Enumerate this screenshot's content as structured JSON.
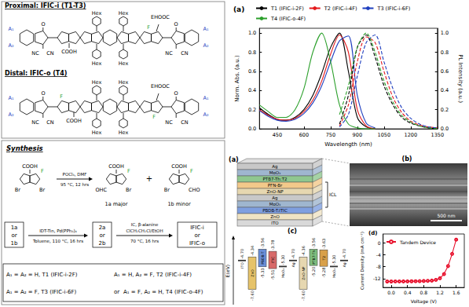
{
  "structures": [
    {
      "title": "Proximal: IFIC-i (T1-T3)",
      "labels": [
        "A₁",
        "A₂",
        "O",
        "NC",
        "CN",
        "COOH",
        "Hex",
        "Hex",
        "Hex",
        "Hex",
        "F",
        "EHOOC",
        "O",
        "NC",
        "CN",
        "A₁",
        "A₂"
      ]
    },
    {
      "title": "Distal: IFIC-o (T4)",
      "labels": [
        "A₁",
        "A₂",
        "O",
        "NC",
        "CN",
        "F",
        "COOH",
        "Hex",
        "Hex",
        "Hex",
        "Hex",
        "F",
        "EHOOC",
        "O",
        "NC",
        "CN",
        "A₁",
        "A₂"
      ]
    }
  ],
  "synthesis": {
    "title": "Synthesis",
    "compounds": [
      {
        "labels": [
          "COOH",
          "F",
          "Br",
          "Br"
        ]
      },
      {
        "labels": [
          "COOH",
          "F",
          "OHC",
          "Br"
        ],
        "name": "1a major"
      },
      {
        "labels": [
          "COOH",
          "F",
          "Br",
          "CHO"
        ],
        "name": "1b minor"
      }
    ],
    "plus": "+",
    "arrow1": {
      "above": [
        "POCl₃, DMF"
      ],
      "below": [
        "95 °C, 12 hrs"
      ]
    },
    "start2": [
      "1a",
      "or",
      "1b"
    ],
    "arrow2": {
      "above": [
        "IDT-Tin, Pd(PPh₃)₄"
      ],
      "below": [
        "Toluene, 110 °C, 16 hrs"
      ]
    },
    "intermediate": [
      "2a",
      "or",
      "2b"
    ],
    "arrow3": {
      "above": [
        "IC, β-alanine",
        "ClCH₂CH₂Cl/EtOH"
      ],
      "below": [
        "70 °C, 16 hrs"
      ]
    },
    "products": [
      "IFIC-i",
      "or",
      "IFIC-o"
    ],
    "key": [
      "A₁ = A₂ = H, T1 (IFIC-i-2F)",
      "A₁ = H, A₂ = F, T2 (IFIC-i-4F)",
      "A₁ = A₂ = F, T3 (IFIC-i-6F)",
      "or",
      "A₁ = F, A₂ = H, T4 (IFIC-o-4F)"
    ]
  },
  "device": {
    "label": "(a)",
    "layers": [
      "Ag",
      "MoO₃",
      "PTB7-Th:T2",
      "PFN-Br",
      "ZnO-NP",
      "Ag",
      "MoO₃",
      "PBDB-T:ITIC",
      "ZnO",
      "ITO"
    ],
    "icl": "ICL"
  },
  "sem": {
    "label": "(b)",
    "scale_bar": "500 nm"
  },
  "energy_levels": {
    "label": "(c)",
    "axis_title": "E(eV)",
    "ylim": [
      -9.2,
      -2.2
    ],
    "items": [
      {
        "name": "ITO",
        "levels": [
          {
            "value": -4.7,
            "label": "-4.70"
          }
        ]
      },
      {
        "name": "ZnO",
        "levels": [
          {
            "value": -4.34,
            "label": "-4.34"
          },
          {
            "value": -7.6,
            "label": "-7.60"
          }
        ]
      },
      {
        "name": "PBDB-T",
        "levels": [
          {
            "value": -3.56,
            "label": "-3.56"
          },
          {
            "value": -5.33,
            "label": "-5.33"
          }
        ]
      },
      {
        "name": "ITIC",
        "levels": [
          {
            "value": -3.78,
            "label": "-3.78"
          },
          {
            "value": -5.51,
            "label": "-5.51"
          }
        ]
      },
      {
        "name": "MoO₃",
        "levels": [
          {
            "value": -5.3,
            "label": "-5.30"
          }
        ]
      },
      {
        "name": "Ag",
        "levels": [
          {
            "value": -4.7,
            "label": "-4.70"
          }
        ]
      },
      {
        "name": "ZnO-NP",
        "levels": [
          {
            "value": -4.36,
            "label": "-4.36"
          },
          {
            "value": -7.6,
            "label": "-7.60"
          }
        ]
      },
      {
        "name": "PTB7-Th",
        "levels": [
          {
            "value": -3.56,
            "label": "-3.56"
          },
          {
            "value": -5.2,
            "label": "-5.20"
          }
        ]
      },
      {
        "name": "T2",
        "levels": [
          {
            "value": -3.63,
            "label": "-3.63"
          },
          {
            "value": -5.28,
            "label": "-5.28"
          }
        ]
      },
      {
        "name": "MoO₃",
        "levels": [
          {
            "value": -5.3,
            "label": "-5.30"
          }
        ]
      },
      {
        "name": "Ag",
        "levels": [
          {
            "value": -4.7,
            "label": "-4.70"
          }
        ]
      }
    ]
  },
  "chart_data": [
    {
      "type": "line",
      "title": "(a)",
      "xlabel": "Wavelength (nm)",
      "ylabel": "Norm. Abs. (a.u.)",
      "y2label": "PL Intensity (a.u.)",
      "x": [
        350,
        400,
        450,
        500,
        550,
        600,
        650,
        700,
        750,
        800,
        850,
        900,
        950,
        1000,
        1050,
        1100,
        1150,
        1200,
        1250,
        1300,
        1350
      ],
      "xlim": [
        350,
        1350
      ],
      "xticks": [
        450,
        600,
        750,
        900,
        1050,
        1200,
        1350
      ],
      "ylim": [
        0,
        1.05
      ],
      "yticks": [
        {
          "value": 0,
          "label": "0.0"
        },
        0.2,
        0.4,
        0.6,
        0.8,
        {
          "value": 1,
          "label": "1.0"
        }
      ],
      "y2lim": [
        0,
        1.05
      ],
      "y2ticks": [
        {
          "value": 0,
          "label": "0.0"
        },
        0.2,
        0.4,
        0.6,
        0.8,
        {
          "value": 1,
          "label": "1.0"
        }
      ],
      "grid": false,
      "legend": "top",
      "series": [
        {
          "name": "T1 (IFIC-i-2F)",
          "color": "#000000",
          "line_style": "solid",
          "values": [
            0.22,
            0.15,
            0.1,
            0.09,
            0.12,
            0.2,
            0.35,
            0.58,
            0.85,
            1.0,
            0.6,
            0.12,
            0.02,
            0.0,
            null,
            null,
            null,
            null,
            null,
            null,
            null
          ]
        },
        {
          "name": "T2 (IFIC-i-4F)",
          "color": "#e41a1c",
          "line_style": "solid",
          "values": [
            0.2,
            0.14,
            0.1,
            0.09,
            0.11,
            0.18,
            0.3,
            0.5,
            0.78,
            0.98,
            0.8,
            0.2,
            0.03,
            0.0,
            null,
            null,
            null,
            null,
            null,
            null,
            null
          ]
        },
        {
          "name": "T3 (IFIC-i-6F)",
          "color": "#1f3fbf",
          "line_style": "solid",
          "values": [
            0.19,
            0.13,
            0.09,
            0.08,
            0.1,
            0.16,
            0.27,
            0.45,
            0.7,
            0.92,
            0.97,
            0.35,
            0.06,
            0.01,
            null,
            null,
            null,
            null,
            null,
            null,
            null
          ]
        },
        {
          "name": "T4 (IFIC-o-4F)",
          "color": "#2ca02c",
          "line_style": "solid",
          "values": [
            0.25,
            0.18,
            0.12,
            0.12,
            0.2,
            0.42,
            0.8,
            1.0,
            0.7,
            0.25,
            0.05,
            0.01,
            0.0,
            0.0,
            null,
            null,
            null,
            null,
            null,
            null,
            null
          ]
        },
        {
          "name": "T1 (IFIC-i-2F)",
          "color": "#000000",
          "line_style": "dashed",
          "axis": "y2",
          "values": [
            null,
            null,
            null,
            null,
            null,
            null,
            null,
            null,
            null,
            0.05,
            0.35,
            0.85,
            0.98,
            0.75,
            0.45,
            0.25,
            0.12,
            0.06,
            0.03,
            0.01,
            0.0
          ]
        },
        {
          "name": "T2 (IFIC-i-4F)",
          "color": "#e41a1c",
          "line_style": "dashed",
          "axis": "y2",
          "values": [
            null,
            null,
            null,
            null,
            null,
            null,
            null,
            null,
            null,
            0.03,
            0.25,
            0.7,
            0.96,
            0.9,
            0.6,
            0.33,
            0.17,
            0.08,
            0.04,
            0.02,
            0.01
          ]
        },
        {
          "name": "T3 (IFIC-i-6F)",
          "color": "#1f3fbf",
          "line_style": "dashed",
          "axis": "y2",
          "values": [
            null,
            null,
            null,
            null,
            null,
            null,
            null,
            null,
            null,
            0.02,
            0.15,
            0.55,
            0.9,
            0.98,
            0.7,
            0.42,
            0.22,
            0.11,
            0.05,
            0.02,
            0.01
          ]
        },
        {
          "name": "T4 (IFIC-o-4F)",
          "color": "#2ca02c",
          "line_style": "dashed",
          "axis": "y2",
          "values": [
            null,
            null,
            null,
            null,
            null,
            null,
            null,
            null,
            null,
            0.15,
            0.45,
            0.85,
            1.0,
            0.8,
            0.5,
            0.28,
            0.14,
            0.07,
            0.03,
            0.01,
            0.0
          ]
        }
      ]
    },
    {
      "type": "line",
      "title": "(d)",
      "xlabel": "Voltage (V)",
      "ylabel": "Current Density (mA cm⁻²)",
      "x": [
        -0.1,
        0.0,
        0.1,
        0.2,
        0.3,
        0.4,
        0.5,
        0.6,
        0.7,
        0.8,
        0.9,
        1.0,
        1.1,
        1.2,
        1.3,
        1.4,
        1.5,
        1.6
      ],
      "xlim": [
        -0.2,
        1.8
      ],
      "xticks": [
        {
          "value": 0,
          "label": "0.0"
        },
        0.4,
        0.8,
        1.2,
        1.6
      ],
      "ylim": [
        -15,
        3
      ],
      "yticks": [
        -12,
        -8,
        -4,
        0
      ],
      "grid": false,
      "legend": "top-left",
      "marker": "circle",
      "series": [
        {
          "name": "Tandem Device",
          "color": "#e8112d",
          "line_style": "solid",
          "values": [
            -13.0,
            -13.0,
            -12.98,
            -12.97,
            -12.96,
            -12.95,
            -12.93,
            -12.9,
            -12.87,
            -12.83,
            -12.78,
            -12.7,
            -12.45,
            -11.9,
            -10.5,
            -7.8,
            -3.7,
            1.1
          ]
        }
      ]
    }
  ]
}
